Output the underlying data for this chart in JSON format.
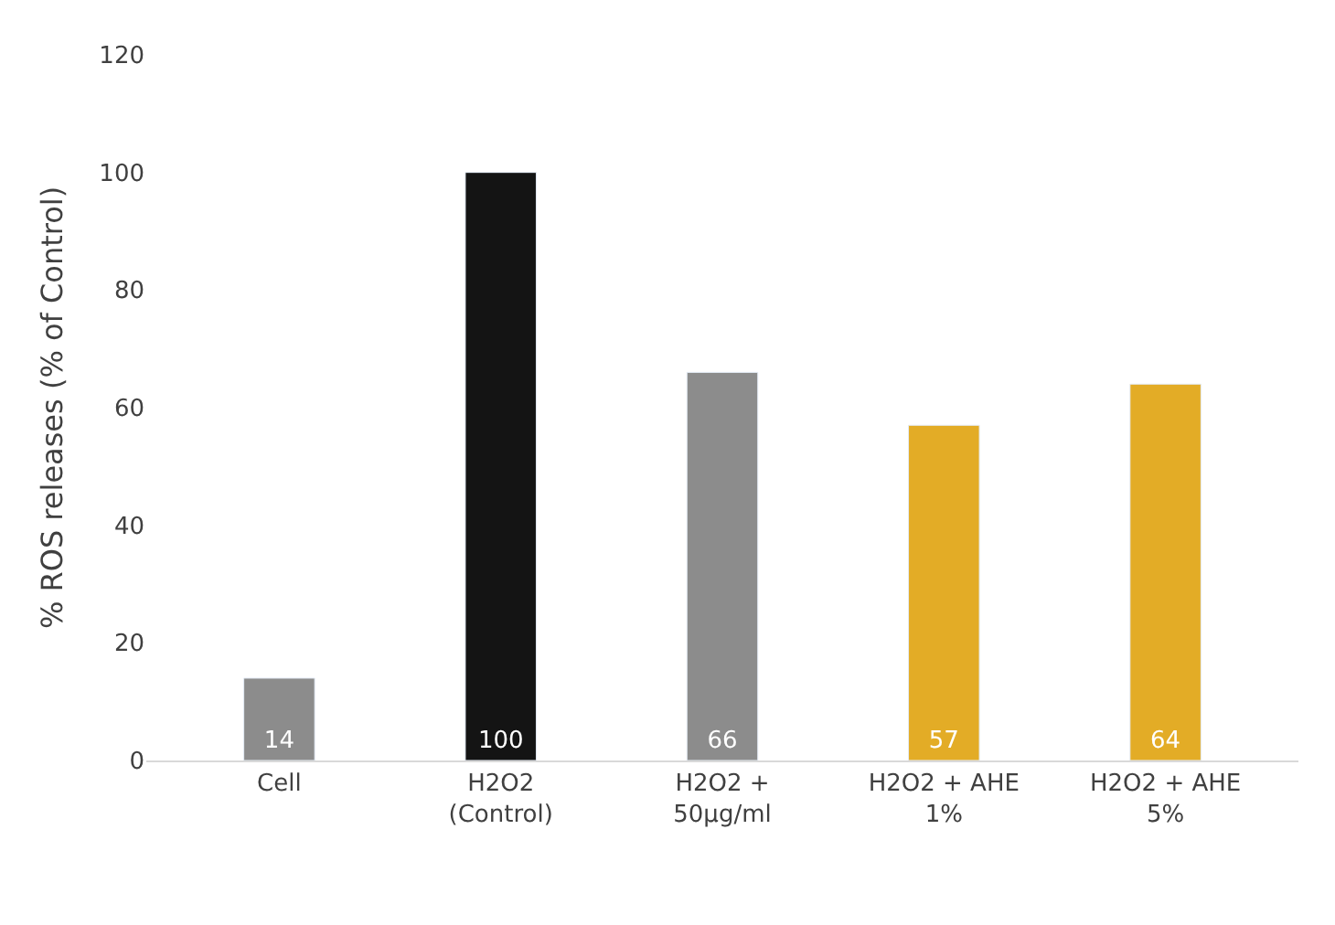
{
  "chart_data": {
    "type": "bar",
    "ylabel": "% ROS releases (% of Control)",
    "categories": [
      "Cell",
      "H2O2\n(Control)",
      "H2O2 +\n50µg/ml",
      "H2O2 + AHE\n1%",
      "H2O2 + AHE\n5%"
    ],
    "values": [
      14,
      100,
      66,
      57,
      64
    ],
    "colors": [
      "#8c8c8c",
      "#141414",
      "#8c8c8c",
      "#e3ac26",
      "#e3ac26"
    ],
    "ylim": [
      0,
      120
    ],
    "yticks": [
      0,
      20,
      40,
      60,
      80,
      100,
      120
    ],
    "data_labels": true
  }
}
